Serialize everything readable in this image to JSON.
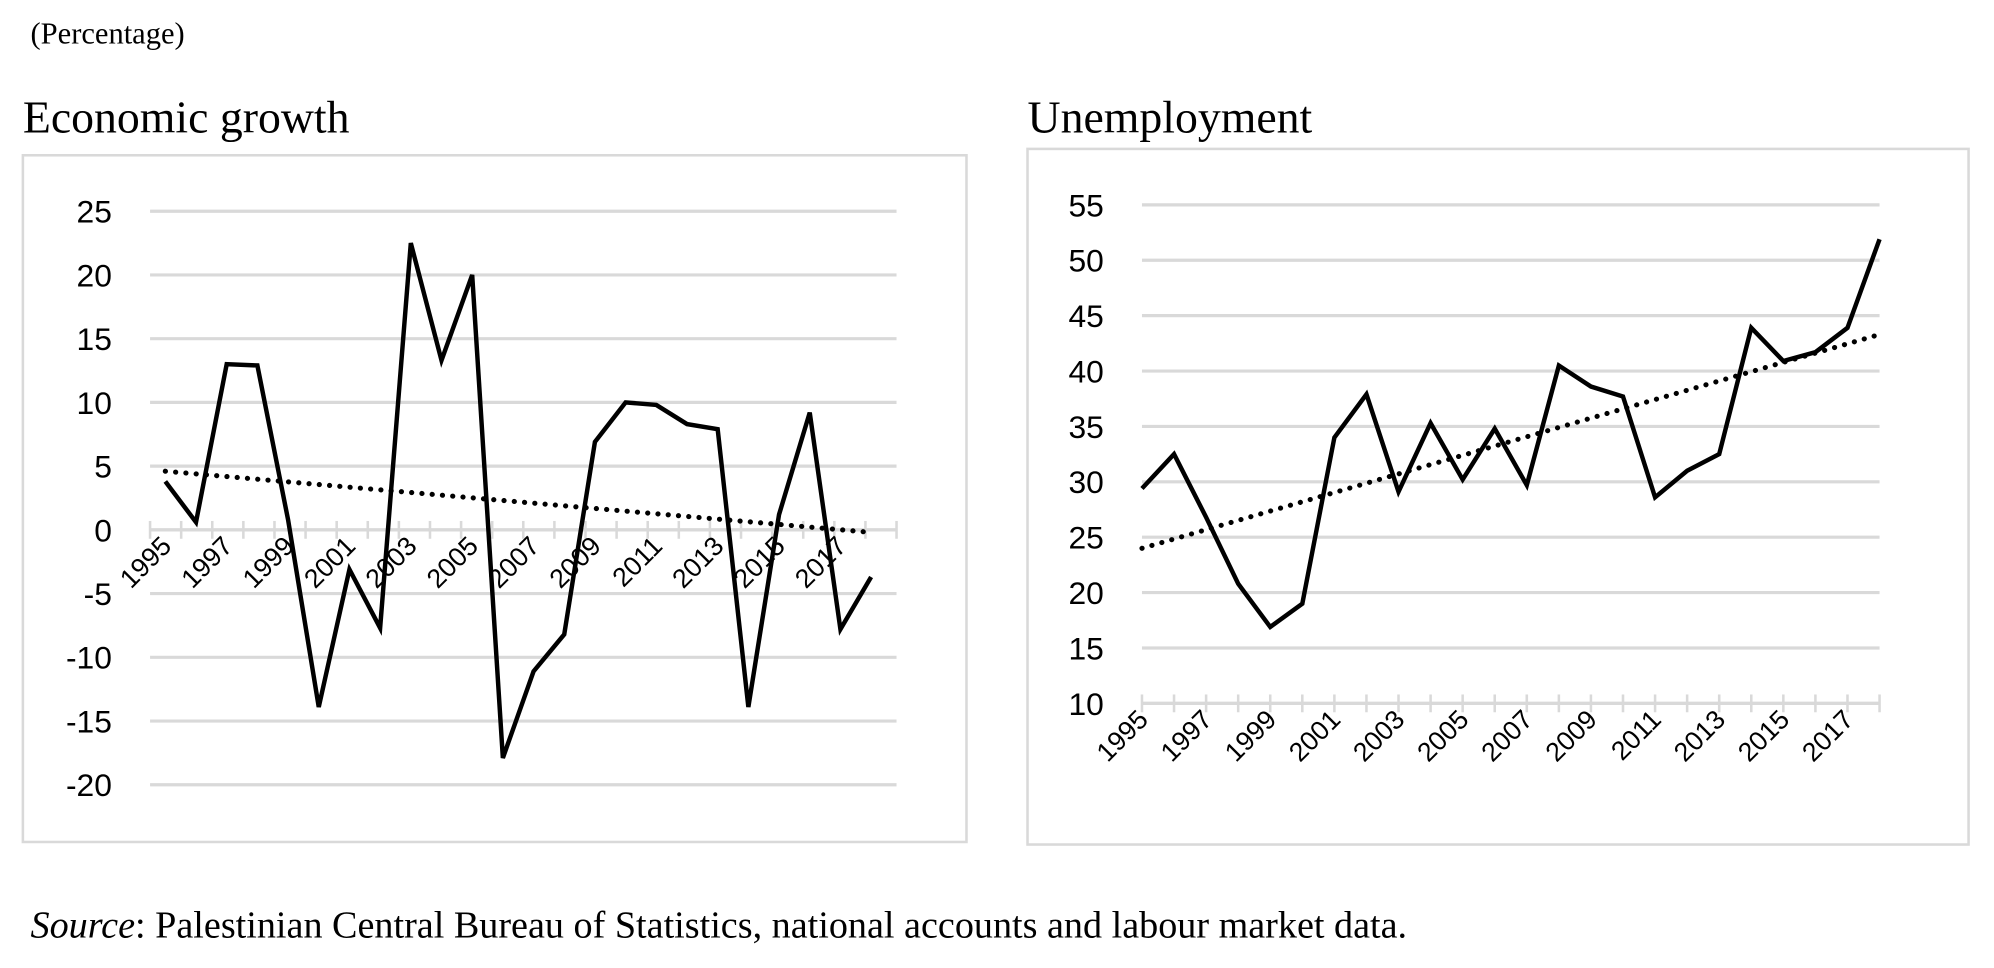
{
  "note": "(Percentage)",
  "chart_data": [
    {
      "type": "line",
      "title": "Economic growth",
      "categories": [
        "1995",
        null,
        "1997",
        null,
        "1999",
        null,
        "2001",
        null,
        "2003",
        null,
        "2005",
        null,
        "2007",
        null,
        "2009",
        null,
        "2011",
        null,
        "2013",
        null,
        "2015",
        null,
        "2017",
        null
      ],
      "series": [
        {
          "color": "#000000",
          "values": [
            3.8,
            0.6,
            13.0,
            12.9,
            0.8,
            -13.9,
            -3.1,
            -7.7,
            22.5,
            13.3,
            20.0,
            -17.9,
            -11.1,
            -8.2,
            6.9,
            10.0,
            9.8,
            8.3,
            7.9,
            -13.9,
            1.2,
            9.2,
            -7.8,
            -3.7
          ]
        }
      ],
      "trendline": {
        "start": 4.6,
        "end": -0.2,
        "style": "dotted",
        "color": "#000000"
      },
      "ylim": [
        -20,
        25
      ],
      "yticks": [
        25,
        20,
        15,
        10,
        5,
        0,
        -5,
        -10,
        -15,
        -20
      ],
      "grid": true
    },
    {
      "type": "line",
      "title": "Unemployment",
      "categories": [
        "1995",
        null,
        "1997",
        null,
        "1999",
        null,
        "2001",
        null,
        "2003",
        null,
        "2005",
        null,
        "2007",
        null,
        "2009",
        null,
        "2011",
        null,
        "2013",
        null,
        "2015",
        null,
        "2017",
        null
      ],
      "series": [
        {
          "color": "#000000",
          "values": [
            29.4,
            32.5,
            26.8,
            20.8,
            16.9,
            19.0,
            34.0,
            37.9,
            29.1,
            35.3,
            30.2,
            34.8,
            29.7,
            40.5,
            38.6,
            37.7,
            28.6,
            31.0,
            32.5,
            43.9,
            40.9,
            41.7,
            43.9,
            51.9
          ]
        }
      ],
      "trendline": {
        "start": 24.0,
        "end": 43.3,
        "style": "dotted",
        "color": "#000000"
      },
      "ylim": [
        10,
        55
      ],
      "yticks": [
        55,
        50,
        45,
        40,
        35,
        30,
        25,
        20,
        15,
        10
      ],
      "grid": true
    }
  ],
  "source": {
    "label": "Source",
    "text": ": Palestinian Central Bureau of Statistics, national accounts and labour market data."
  }
}
